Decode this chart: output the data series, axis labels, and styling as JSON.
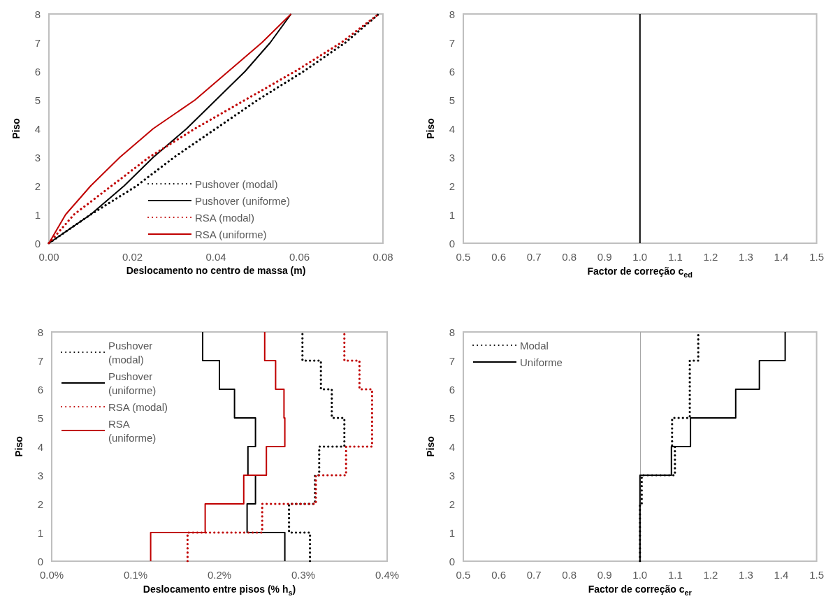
{
  "chart_data": [
    {
      "type": "line",
      "xlabel": "Deslocamento no centro de massa (m)",
      "ylabel": "Piso",
      "xlim": [
        0,
        0.08
      ],
      "xticks": [
        {
          "value": 0,
          "label": "0.00"
        },
        {
          "value": 0.02,
          "label": "0.02"
        },
        {
          "value": 0.04,
          "label": "0.04"
        },
        {
          "value": 0.06,
          "label": "0.06"
        },
        {
          "value": 0.08,
          "label": "0.08"
        }
      ],
      "ylim": [
        0,
        8
      ],
      "yticks": [
        0,
        1,
        2,
        3,
        4,
        5,
        6,
        7,
        8
      ],
      "legend": "bottom right",
      "marker": "none",
      "series": [
        {
          "name": "Pushover (modal)",
          "color": "#000000",
          "line_style": "dotted",
          "x": [
            0,
            0.01,
            0.021,
            0.03,
            0.04,
            0.05,
            0.061,
            0.071,
            0.079
          ],
          "values": [
            0,
            1,
            2,
            3,
            4,
            5,
            6,
            7,
            8
          ]
        },
        {
          "name": "Pushover (uniforme)",
          "color": "#000000",
          "line_style": "solid",
          "x": [
            0,
            0.01,
            0.018,
            0.025,
            0.033,
            0.04,
            0.047,
            0.053,
            0.058
          ],
          "values": [
            0,
            1,
            2,
            3,
            4,
            5,
            6,
            7,
            8
          ]
        },
        {
          "name": "RSA (modal)",
          "color": "#c00000",
          "line_style": "dotted",
          "x": [
            0,
            0.006,
            0.015,
            0.024,
            0.035,
            0.047,
            0.059,
            0.07,
            0.079
          ],
          "values": [
            0,
            1,
            2,
            3,
            4,
            5,
            6,
            7,
            8
          ]
        },
        {
          "name": "RSA (uniforme)",
          "color": "#c00000",
          "line_style": "solid",
          "x": [
            0,
            0.004,
            0.01,
            0.017,
            0.025,
            0.035,
            0.043,
            0.051,
            0.058
          ],
          "values": [
            0,
            1,
            2,
            3,
            4,
            5,
            6,
            7,
            8
          ]
        }
      ]
    },
    {
      "type": "line",
      "xlabel": "Factor de correção c$_{ed}$",
      "ylabel": "Piso",
      "xlim": [
        0.5,
        1.5
      ],
      "xticks": [
        0.5,
        0.6,
        0.7,
        0.8,
        0.9,
        {
          "value": 1,
          "label": "1.0"
        },
        1.1,
        1.2,
        1.3,
        1.4,
        1.5
      ],
      "ylim": [
        0,
        8
      ],
      "yticks": [
        0,
        1,
        2,
        3,
        4,
        5,
        6,
        7,
        8
      ],
      "legend": false,
      "marker": "none",
      "series": [
        {
          "color": "#000000",
          "line_style": "solid",
          "x": [
            1,
            1,
            1,
            1,
            1,
            1,
            1,
            1,
            1,
            1,
            1,
            1,
            1,
            1,
            1,
            1
          ],
          "values": [
            0,
            1,
            1,
            2,
            2,
            3,
            3,
            4,
            4,
            5,
            5,
            6,
            6,
            7,
            7,
            8
          ]
        }
      ]
    },
    {
      "type": "line",
      "xlabel": "Deslocamento entre pisos (% h$_{s}$)",
      "ylabel": "Piso",
      "xlim": [
        0,
        0.4
      ],
      "xticks": [
        {
          "value": 0,
          "label": "0.0%"
        },
        {
          "value": 0.1,
          "label": "0.1%"
        },
        {
          "value": 0.2,
          "label": "0.2%"
        },
        {
          "value": 0.3,
          "label": "0.3%"
        },
        {
          "value": 0.4,
          "label": "0.4%"
        }
      ],
      "ylim": [
        0,
        8
      ],
      "yticks": [
        0,
        1,
        2,
        3,
        4,
        5,
        6,
        7,
        8
      ],
      "legend": "top left",
      "marker": "none",
      "series": [
        {
          "name": "Pushover (modal)",
          "color": "#000000",
          "line_style": "dotted",
          "x": [
            0.308,
            0.308,
            0.283,
            0.283,
            0.314,
            0.314,
            0.319,
            0.319,
            0.349,
            0.349,
            0.334,
            0.334,
            0.321,
            0.321,
            0.299,
            0.299
          ],
          "values": [
            0,
            1,
            1,
            2,
            2,
            3,
            3,
            4,
            4,
            5,
            5,
            6,
            6,
            7,
            7,
            8
          ]
        },
        {
          "name": "Pushover (uniforme)",
          "color": "#000000",
          "line_style": "solid",
          "x": [
            0.278,
            0.278,
            0.233,
            0.233,
            0.243,
            0.243,
            0.234,
            0.234,
            0.243,
            0.243,
            0.218,
            0.218,
            0.2,
            0.2,
            0.18,
            0.18
          ],
          "values": [
            0,
            1,
            1,
            2,
            2,
            3,
            3,
            4,
            4,
            5,
            5,
            6,
            6,
            7,
            7,
            8
          ]
        },
        {
          "name": "RSA (modal)",
          "color": "#c00000",
          "line_style": "dotted",
          "x": [
            0.162,
            0.162,
            0.251,
            0.251,
            0.315,
            0.315,
            0.351,
            0.351,
            0.382,
            0.382,
            0.382,
            0.382,
            0.367,
            0.367,
            0.349,
            0.349
          ],
          "values": [
            0,
            1,
            1,
            2,
            2,
            3,
            3,
            4,
            4,
            5,
            5,
            6,
            6,
            7,
            7,
            8
          ]
        },
        {
          "name": "RSA (uniforme)",
          "color": "#c00000",
          "line_style": "solid",
          "x": [
            0.118,
            0.118,
            0.183,
            0.183,
            0.229,
            0.229,
            0.256,
            0.256,
            0.278,
            0.278,
            0.277,
            0.277,
            0.267,
            0.267,
            0.254,
            0.254
          ],
          "values": [
            0,
            1,
            1,
            2,
            2,
            3,
            3,
            4,
            4,
            5,
            5,
            6,
            6,
            7,
            7,
            8
          ]
        }
      ]
    },
    {
      "type": "line",
      "xlabel": "Factor de correção c$_{er}$",
      "ylabel": "Piso",
      "xlim": [
        0.5,
        1.5
      ],
      "xticks": [
        0.5,
        0.6,
        0.7,
        0.8,
        0.9,
        {
          "value": 1,
          "label": "1.0"
        },
        1.1,
        1.2,
        1.3,
        1.4,
        1.5
      ],
      "ylim": [
        0,
        8
      ],
      "yticks": [
        0,
        1,
        2,
        3,
        4,
        5,
        6,
        7,
        8
      ],
      "legend": "top left",
      "marker": "none",
      "ref_lines": [
        {
          "axis": "x",
          "value": 1,
          "color": "#a6a6a6"
        }
      ],
      "series": [
        {
          "name": "Modal",
          "color": "#000000",
          "line_style": "dotted",
          "x": [
            1.0,
            1.0,
            1.0,
            1.0,
            1.005,
            1.005,
            1.099,
            1.099,
            1.091,
            1.091,
            1.141,
            1.141,
            1.141,
            1.141,
            1.165,
            1.165
          ],
          "values": [
            0,
            1,
            1,
            2,
            2,
            3,
            3,
            4,
            4,
            5,
            5,
            6,
            6,
            7,
            7,
            8
          ]
        },
        {
          "name": "Uniforme",
          "color": "#000000",
          "line_style": "solid",
          "x": [
            1.0,
            1.0,
            1.0,
            1.0,
            1.0,
            1.0,
            1.089,
            1.089,
            1.143,
            1.143,
            1.271,
            1.271,
            1.338,
            1.338,
            1.411,
            1.411
          ],
          "values": [
            0,
            1,
            1,
            2,
            2,
            3,
            3,
            4,
            4,
            5,
            5,
            6,
            6,
            7,
            7,
            8
          ]
        }
      ]
    }
  ]
}
